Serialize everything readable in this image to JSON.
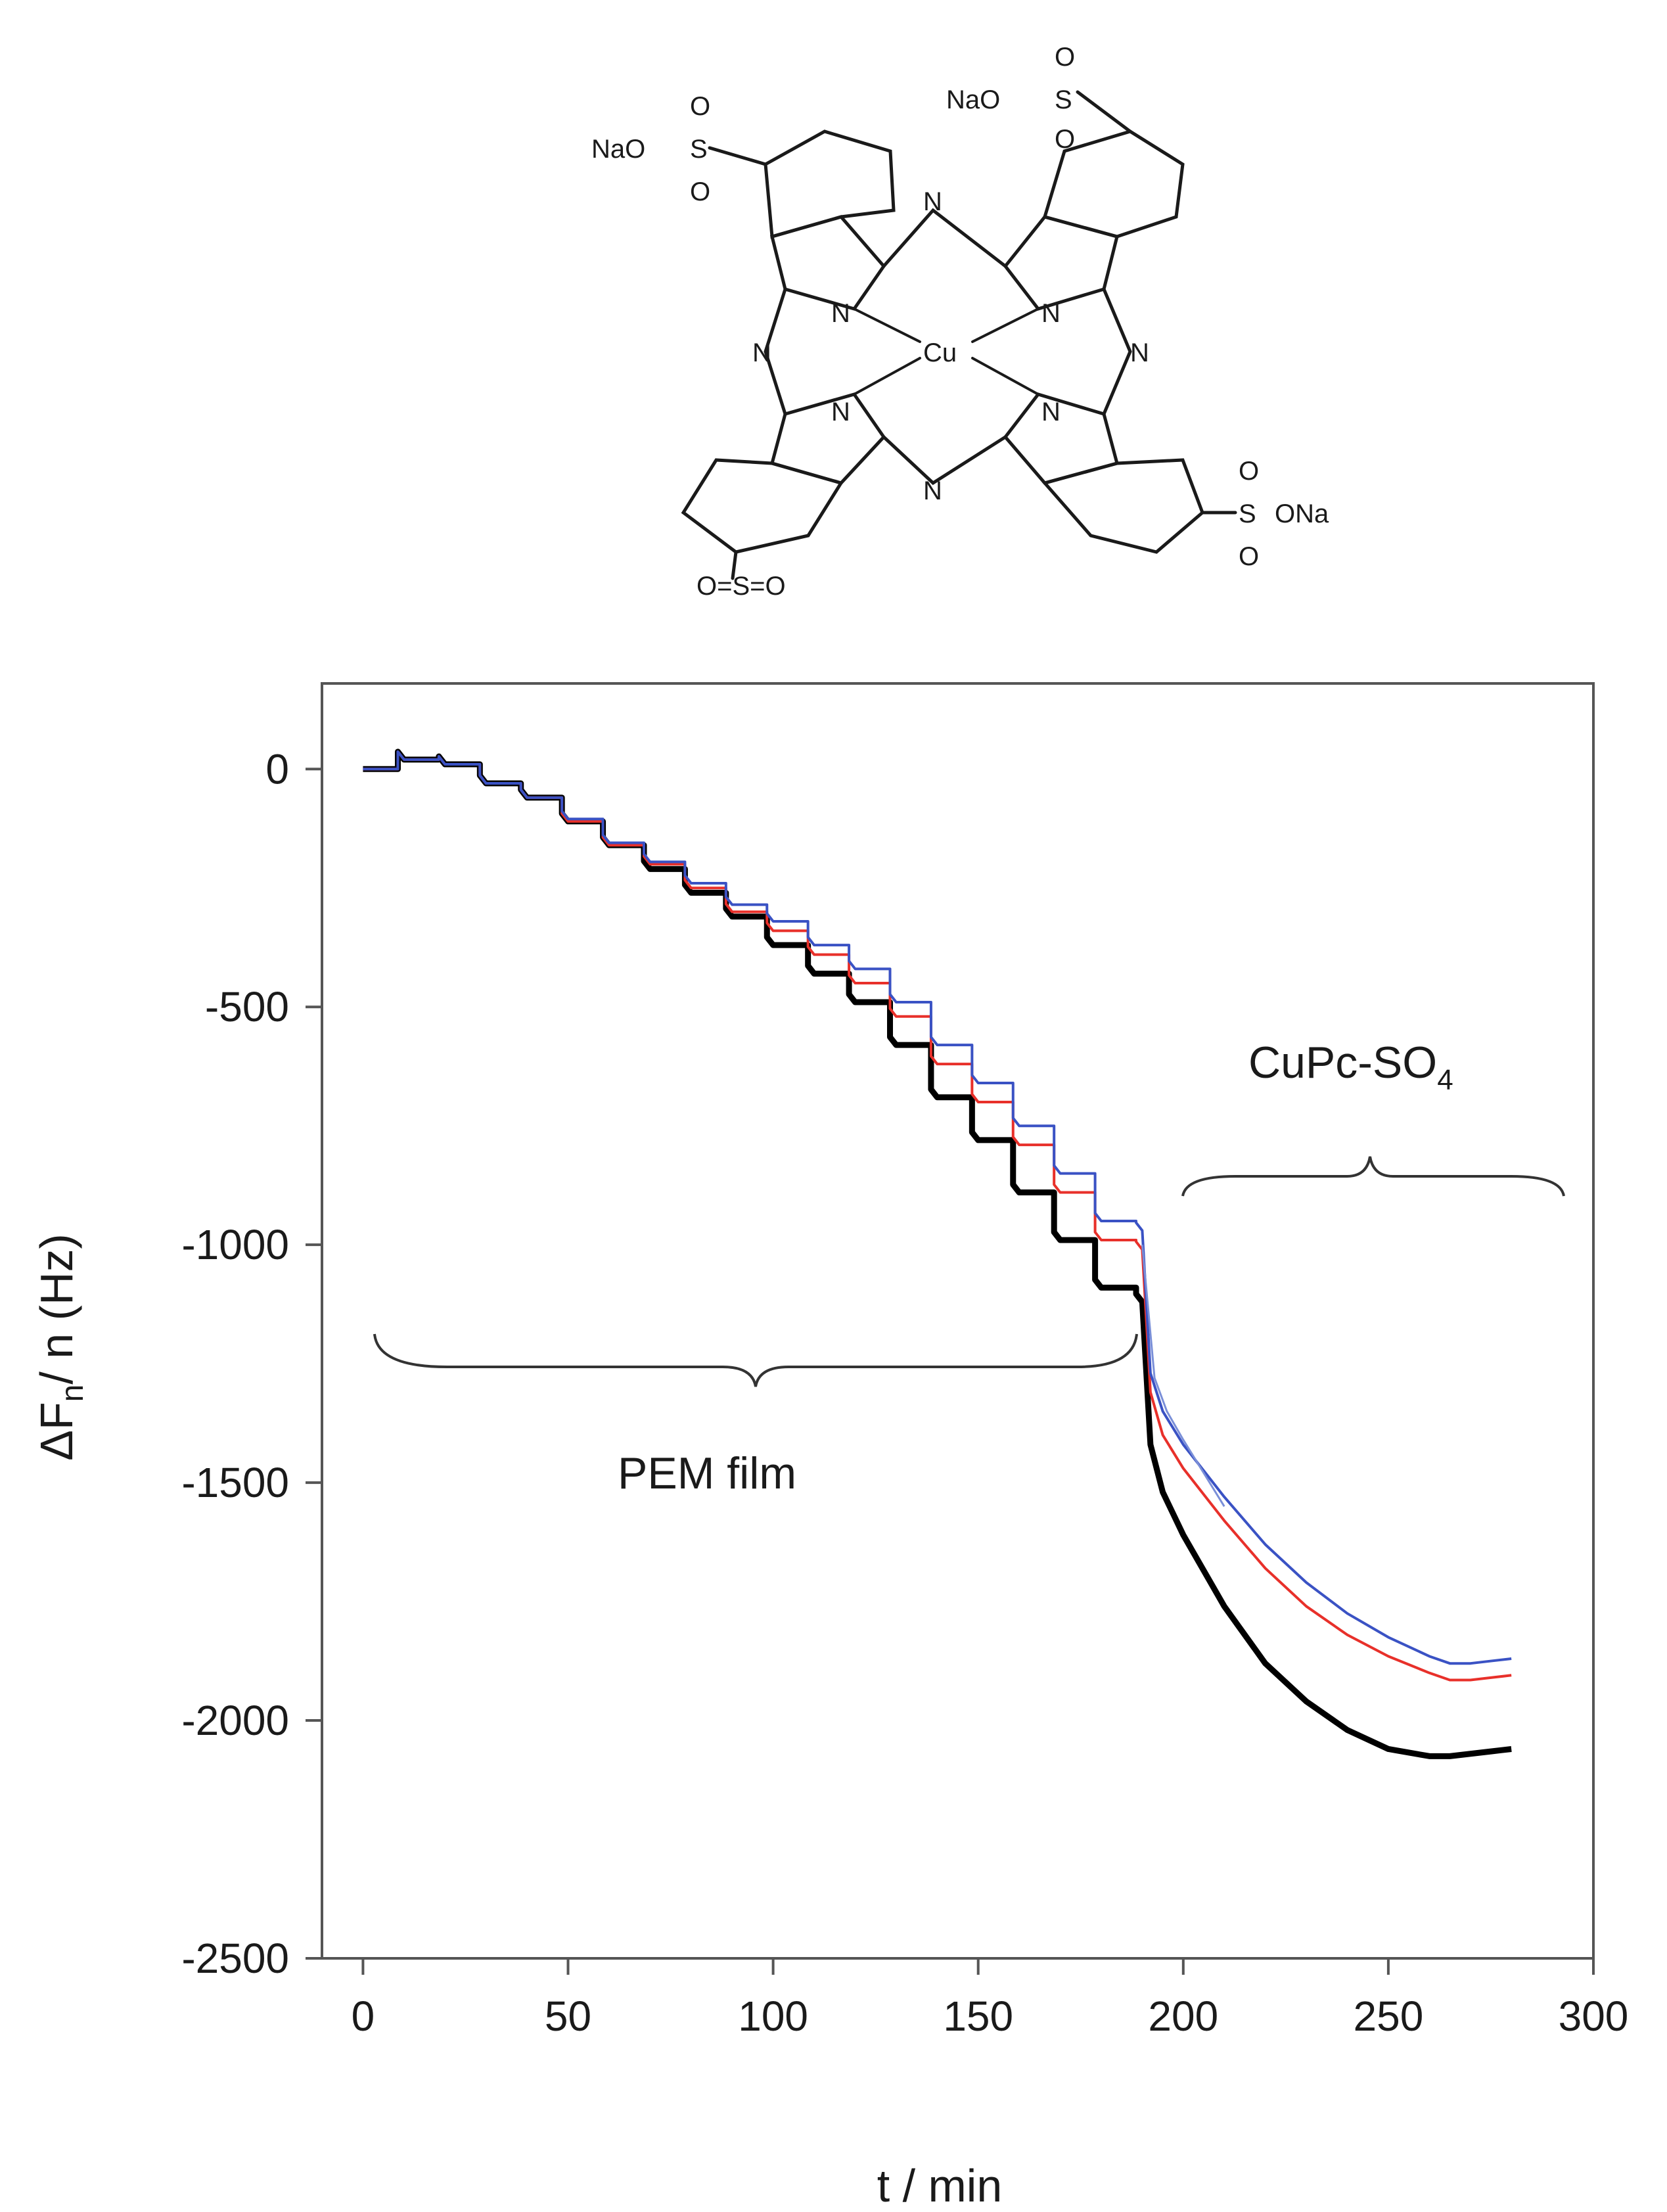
{
  "molecule": {
    "atom_labels": {
      "na_o": "NaO",
      "o_na": "ONa",
      "sulfur": "S",
      "oxygen": "O",
      "nitrogen": "N",
      "copper": "Cu",
      "bottom_sulfonyl": "O=S=O"
    }
  },
  "chart_data": {
    "type": "line",
    "xlabel": "t / min",
    "ylabel": "ΔFn/ n (Hz)",
    "ylabel_parts": {
      "delta_f": "ΔF",
      "subscript": "n",
      "rest": "/ n (Hz)"
    },
    "xlim": [
      -10,
      300
    ],
    "ylim": [
      -2500,
      180
    ],
    "x_ticks": [
      0,
      50,
      100,
      150,
      200,
      250,
      300
    ],
    "x_tick_labels": [
      "0",
      "50",
      "100",
      "150",
      "200",
      "250",
      "300"
    ],
    "y_ticks": [
      0,
      -500,
      -1000,
      -1500,
      -2000,
      -2500
    ],
    "y_tick_labels": [
      "0",
      "-500",
      "-1000",
      "-1500",
      "-2000",
      "-2500"
    ],
    "grid": false,
    "annotations": {
      "pem_film": "PEM film",
      "cupc": {
        "base": "CuPc-SO",
        "subscript": "4"
      }
    },
    "series": [
      {
        "color": "#000000",
        "x": [
          0,
          10,
          20,
          30,
          40,
          50,
          60,
          70,
          80,
          90,
          100,
          110,
          120,
          130,
          140,
          150,
          160,
          170,
          180,
          190,
          192,
          195,
          200,
          210,
          220,
          230,
          240,
          250,
          260,
          265,
          270,
          275,
          280
        ],
        "y": [
          0,
          20,
          10,
          -30,
          -60,
          -110,
          -160,
          -210,
          -260,
          -310,
          -370,
          -430,
          -490,
          -580,
          -690,
          -780,
          -890,
          -990,
          -1090,
          -1120,
          -1420,
          -1520,
          -1610,
          -1760,
          -1880,
          -1960,
          -2020,
          -2060,
          -2075,
          -2075,
          -2070,
          -2065,
          -2060
        ]
      },
      {
        "color": "#e8302a",
        "x": [
          0,
          10,
          20,
          30,
          40,
          50,
          60,
          70,
          80,
          90,
          100,
          110,
          120,
          130,
          140,
          150,
          160,
          170,
          180,
          190,
          192,
          195,
          200,
          210,
          220,
          230,
          240,
          250,
          260,
          265,
          270,
          275,
          280
        ],
        "y": [
          0,
          20,
          10,
          -30,
          -60,
          -110,
          -160,
          -200,
          -250,
          -300,
          -340,
          -390,
          -450,
          -520,
          -620,
          -700,
          -790,
          -890,
          -990,
          -1010,
          -1310,
          -1400,
          -1470,
          -1580,
          -1680,
          -1760,
          -1820,
          -1865,
          -1900,
          -1915,
          -1915,
          -1910,
          -1905
        ]
      },
      {
        "color": "#3a52c4",
        "x": [
          0,
          10,
          20,
          30,
          40,
          50,
          60,
          70,
          80,
          90,
          100,
          110,
          120,
          130,
          140,
          150,
          160,
          170,
          180,
          190,
          192,
          195,
          200,
          210,
          220,
          230,
          240,
          250,
          260,
          265,
          270,
          275,
          280
        ],
        "y": [
          0,
          20,
          10,
          -30,
          -60,
          -105,
          -155,
          -195,
          -240,
          -285,
          -320,
          -370,
          -420,
          -490,
          -580,
          -660,
          -750,
          -850,
          -950,
          -970,
          -1270,
          -1350,
          -1420,
          -1530,
          -1630,
          -1710,
          -1775,
          -1825,
          -1865,
          -1880,
          -1880,
          -1875,
          -1870
        ]
      },
      {
        "color": "#7a8fd8",
        "x": [
          190,
          193,
          196,
          200,
          205,
          210
        ],
        "y": [
          -1000,
          -1280,
          -1350,
          -1410,
          -1480,
          -1550
        ]
      }
    ]
  }
}
